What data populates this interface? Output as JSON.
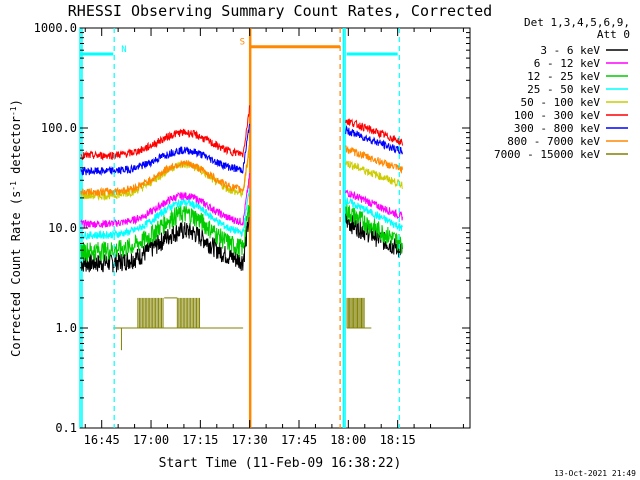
{
  "chart_data": {
    "type": "line",
    "title": "RHESSI Observing Summary Count Rates, Corrected",
    "xlabel": "Start Time (11-Feb-09 16:38:22)",
    "ylabel_main": "Corrected Count Rate (s",
    "ylabel_sup": "-1",
    "ylabel_tail": " detector",
    "ylabel_tail_sup": "-1",
    "ylabel_close": ")",
    "ylog": true,
    "ylim": [
      0.1,
      1000
    ],
    "xlim_min": [
      38.4,
      157
    ],
    "x_ticks": [
      {
        "v": 45,
        "label": "16:45"
      },
      {
        "v": 60,
        "label": "17:00"
      },
      {
        "v": 75,
        "label": "17:15"
      },
      {
        "v": 90,
        "label": "17:30"
      },
      {
        "v": 105,
        "label": "17:45"
      },
      {
        "v": 120,
        "label": "18:00"
      },
      {
        "v": 135,
        "label": "18:15"
      }
    ],
    "y_ticks": [
      {
        "v": 0.1,
        "label": "0.1"
      },
      {
        "v": 1,
        "label": "1.0"
      },
      {
        "v": 10,
        "label": "10.0"
      },
      {
        "v": 100,
        "label": "100.0"
      },
      {
        "v": 1000,
        "label": "1000.0"
      }
    ],
    "legend_header": [
      "Det 1,3,4,5,6,9,",
      "Att 0"
    ],
    "series": [
      {
        "name": "3 - 6 keV",
        "color": "#000000",
        "pre": 4.5,
        "peak": 9.5,
        "post": 12,
        "postEnd": 6
      },
      {
        "name": "6 - 12 keV",
        "color": "#ff00ff",
        "pre": 11,
        "peak": 21,
        "post": 23,
        "postEnd": 13
      },
      {
        "name": "12 - 25 keV",
        "color": "#00cc00",
        "pre": 6,
        "peak": 14,
        "post": 15,
        "postEnd": 7
      },
      {
        "name": "25 - 50 keV",
        "color": "#00ffff",
        "pre": 8.5,
        "peak": 18,
        "post": 19,
        "postEnd": 10
      },
      {
        "name": "50 - 100 keV",
        "color": "#cccc00",
        "pre": 21,
        "peak": 43,
        "post": 45,
        "postEnd": 27
      },
      {
        "name": "100 - 300 keV",
        "color": "#ff0000",
        "pre": 53,
        "peak": 90,
        "post": 120,
        "postEnd": 72
      },
      {
        "name": "300 - 800 keV",
        "color": "#0000ff",
        "pre": 37,
        "peak": 60,
        "post": 95,
        "postEnd": 58
      },
      {
        "name": "800 - 7000 keV",
        "color": "#ff8800",
        "pre": 23,
        "peak": 44,
        "post": 62,
        "postEnd": 38
      },
      {
        "name": "7000 - 15000 keV",
        "color": "#808000",
        "pre": 1,
        "peak": 1,
        "post": 1,
        "postEnd": 1
      }
    ],
    "gaps": [
      {
        "x1": 38.4,
        "x2": 39.0,
        "color": "#00ffff"
      },
      {
        "x1": 118.5,
        "x2": 119.0,
        "color": "#00ffff"
      },
      {
        "x1": 90.0,
        "x2": 90.3,
        "color": "#ff8800"
      }
    ],
    "dashed_marks": [
      {
        "x": 48.8,
        "color": "#00ffff"
      },
      {
        "x": 117.5,
        "color": "#ff8800"
      },
      {
        "x": 135.5,
        "color": "#00ffff"
      }
    ],
    "flag_bars": [
      {
        "label": "N",
        "x1": 38.4,
        "x2": 48.5,
        "color": "#00ffff",
        "level": 550
      },
      {
        "label": "",
        "x1": 119.5,
        "x2": 135.0,
        "color": "#00ffff",
        "level": 550
      },
      {
        "label": "S",
        "x1": 90.0,
        "x2": 117.5,
        "color": "#ff8800",
        "level": 650
      }
    ],
    "timestamp": "13-Oct-2021 21:49"
  }
}
